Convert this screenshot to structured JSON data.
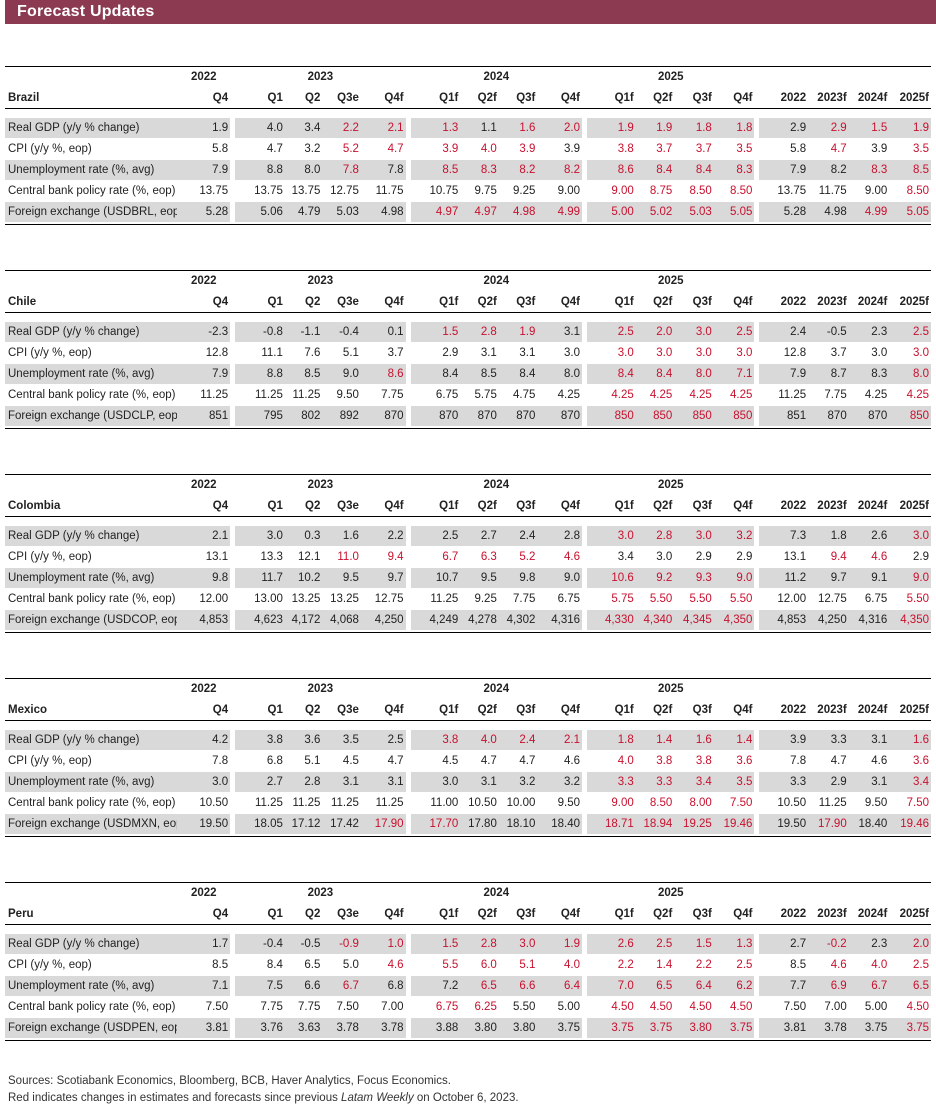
{
  "title": "Forecast Updates",
  "year_headers": [
    "2022",
    "2023",
    "2024",
    "2025"
  ],
  "quarter_headers": [
    "Q4",
    "Q1",
    "Q2",
    "Q3e",
    "Q4f",
    "Q1f",
    "Q2f",
    "Q3f",
    "Q4f",
    "Q1f",
    "Q2f",
    "Q3f",
    "Q4f"
  ],
  "annual_headers": [
    "2022",
    "2023f",
    "2024f",
    "2025f"
  ],
  "countries": [
    {
      "name": "Brazil",
      "rows": [
        {
          "label": "Real GDP (y/y % change)",
          "q": [
            "1.9",
            "4.0",
            "3.4",
            "2.2",
            "2.1",
            "1.3",
            "1.1",
            "1.6",
            "2.0",
            "1.9",
            "1.9",
            "1.8",
            "1.8"
          ],
          "a": [
            "2.9",
            "2.9",
            "1.5",
            "1.9"
          ],
          "red_q": [
            3,
            4,
            5,
            7,
            8,
            9,
            10,
            11,
            12
          ],
          "red_a": [
            1,
            2,
            3
          ]
        },
        {
          "label": "CPI (y/y %, eop)",
          "q": [
            "5.8",
            "4.7",
            "3.2",
            "5.2",
            "4.7",
            "3.9",
            "4.0",
            "3.9",
            "3.9",
            "3.8",
            "3.7",
            "3.7",
            "3.5"
          ],
          "a": [
            "5.8",
            "4.7",
            "3.9",
            "3.5"
          ],
          "red_q": [
            3,
            4,
            5,
            6,
            7,
            9,
            10,
            11,
            12
          ],
          "red_a": [
            1,
            3
          ]
        },
        {
          "label": "Unemployment rate (%, avg)",
          "q": [
            "7.9",
            "8.8",
            "8.0",
            "7.8",
            "7.8",
            "8.5",
            "8.3",
            "8.2",
            "8.2",
            "8.6",
            "8.4",
            "8.4",
            "8.3"
          ],
          "a": [
            "7.9",
            "8.2",
            "8.3",
            "8.5"
          ],
          "red_q": [
            3,
            5,
            6,
            7,
            8,
            9,
            10,
            11,
            12
          ],
          "red_a": [
            2,
            3
          ]
        },
        {
          "label": "Central bank policy rate (%, eop)",
          "q": [
            "13.75",
            "13.75",
            "13.75",
            "12.75",
            "11.75",
            "10.75",
            "9.75",
            "9.25",
            "9.00",
            "9.00",
            "8.75",
            "8.50",
            "8.50"
          ],
          "a": [
            "13.75",
            "11.75",
            "9.00",
            "8.50"
          ],
          "red_q": [
            9,
            10,
            11,
            12
          ],
          "red_a": [
            3
          ]
        },
        {
          "label": "Foreign exchange (USDBRL, eop)",
          "q": [
            "5.28",
            "5.06",
            "4.79",
            "5.03",
            "4.98",
            "4.97",
            "4.97",
            "4.98",
            "4.99",
            "5.00",
            "5.02",
            "5.03",
            "5.05"
          ],
          "a": [
            "5.28",
            "4.98",
            "4.99",
            "5.05"
          ],
          "red_q": [
            5,
            6,
            7,
            8,
            9,
            10,
            11,
            12
          ],
          "red_a": [
            2,
            3
          ]
        }
      ]
    },
    {
      "name": "Chile",
      "rows": [
        {
          "label": "Real GDP (y/y % change)",
          "q": [
            "-2.3",
            "-0.8",
            "-1.1",
            "-0.4",
            "0.1",
            "1.5",
            "2.8",
            "1.9",
            "3.1",
            "2.5",
            "2.0",
            "3.0",
            "2.5"
          ],
          "a": [
            "2.4",
            "-0.5",
            "2.3",
            "2.5"
          ],
          "red_q": [
            5,
            6,
            7,
            9,
            10,
            11,
            12
          ],
          "red_a": [
            3
          ]
        },
        {
          "label": "CPI (y/y %, eop)",
          "q": [
            "12.8",
            "11.1",
            "7.6",
            "5.1",
            "3.7",
            "2.9",
            "3.1",
            "3.1",
            "3.0",
            "3.0",
            "3.0",
            "3.0",
            "3.0"
          ],
          "a": [
            "12.8",
            "3.7",
            "3.0",
            "3.0"
          ],
          "red_q": [
            9,
            10,
            11,
            12
          ],
          "red_a": [
            3
          ]
        },
        {
          "label": "Unemployment rate (%, avg)",
          "q": [
            "7.9",
            "8.8",
            "8.5",
            "9.0",
            "8.6",
            "8.4",
            "8.5",
            "8.4",
            "8.0",
            "8.4",
            "8.4",
            "8.0",
            "7.1"
          ],
          "a": [
            "7.9",
            "8.7",
            "8.3",
            "8.0"
          ],
          "red_q": [
            4,
            9,
            10,
            11,
            12
          ],
          "red_a": [
            3
          ]
        },
        {
          "label": "Central bank policy rate (%, eop)",
          "q": [
            "11.25",
            "11.25",
            "11.25",
            "9.50",
            "7.75",
            "6.75",
            "5.75",
            "4.75",
            "4.25",
            "4.25",
            "4.25",
            "4.25",
            "4.25"
          ],
          "a": [
            "11.25",
            "7.75",
            "4.25",
            "4.25"
          ],
          "red_q": [
            9,
            10,
            11,
            12
          ],
          "red_a": [
            3
          ]
        },
        {
          "label": "Foreign exchange (USDCLP, eop)",
          "q": [
            "851",
            "795",
            "802",
            "892",
            "870",
            "870",
            "870",
            "870",
            "870",
            "850",
            "850",
            "850",
            "850"
          ],
          "a": [
            "851",
            "870",
            "870",
            "850"
          ],
          "red_q": [
            9,
            10,
            11,
            12
          ],
          "red_a": [
            3
          ]
        }
      ]
    },
    {
      "name": "Colombia",
      "rows": [
        {
          "label": "Real GDP (y/y % change)",
          "q": [
            "2.1",
            "3.0",
            "0.3",
            "1.6",
            "2.2",
            "2.5",
            "2.7",
            "2.4",
            "2.8",
            "3.0",
            "2.8",
            "3.0",
            "3.2"
          ],
          "a": [
            "7.3",
            "1.8",
            "2.6",
            "3.0"
          ],
          "red_q": [
            9,
            10,
            11,
            12
          ],
          "red_a": [
            3
          ]
        },
        {
          "label": "CPI (y/y %, eop)",
          "q": [
            "13.1",
            "13.3",
            "12.1",
            "11.0",
            "9.4",
            "6.7",
            "6.3",
            "5.2",
            "4.6",
            "3.4",
            "3.0",
            "2.9",
            "2.9"
          ],
          "a": [
            "13.1",
            "9.4",
            "4.6",
            "2.9"
          ],
          "red_q": [
            3,
            4,
            5,
            6,
            7,
            8
          ],
          "red_a": [
            1,
            2
          ]
        },
        {
          "label": "Unemployment rate (%, avg)",
          "q": [
            "9.8",
            "11.7",
            "10.2",
            "9.5",
            "9.7",
            "10.7",
            "9.5",
            "9.8",
            "9.0",
            "10.6",
            "9.2",
            "9.3",
            "9.0"
          ],
          "a": [
            "11.2",
            "9.7",
            "9.1",
            "9.0"
          ],
          "red_q": [
            9,
            10,
            11,
            12
          ],
          "red_a": [
            3
          ]
        },
        {
          "label": "Central bank policy rate (%, eop)",
          "q": [
            "12.00",
            "13.00",
            "13.25",
            "13.25",
            "12.75",
            "11.25",
            "9.25",
            "7.75",
            "6.75",
            "5.75",
            "5.50",
            "5.50",
            "5.50"
          ],
          "a": [
            "12.00",
            "12.75",
            "6.75",
            "5.50"
          ],
          "red_q": [
            9,
            10,
            11,
            12
          ],
          "red_a": [
            3
          ]
        },
        {
          "label": "Foreign exchange (USDCOP, eop)",
          "q": [
            "4,853",
            "4,623",
            "4,172",
            "4,068",
            "4,250",
            "4,249",
            "4,278",
            "4,302",
            "4,316",
            "4,330",
            "4,340",
            "4,345",
            "4,350"
          ],
          "a": [
            "4,853",
            "4,250",
            "4,316",
            "4,350"
          ],
          "red_q": [
            9,
            10,
            11,
            12
          ],
          "red_a": [
            3
          ]
        }
      ]
    },
    {
      "name": "Mexico",
      "rows": [
        {
          "label": "Real GDP (y/y % change)",
          "q": [
            "4.2",
            "3.8",
            "3.6",
            "3.5",
            "2.5",
            "3.8",
            "4.0",
            "2.4",
            "2.1",
            "1.8",
            "1.4",
            "1.6",
            "1.4"
          ],
          "a": [
            "3.9",
            "3.3",
            "3.1",
            "1.6"
          ],
          "red_q": [
            5,
            6,
            7,
            8,
            9,
            10,
            11,
            12
          ],
          "red_a": [
            3
          ]
        },
        {
          "label": "CPI (y/y %, eop)",
          "q": [
            "7.8",
            "6.8",
            "5.1",
            "4.5",
            "4.7",
            "4.5",
            "4.7",
            "4.7",
            "4.6",
            "4.0",
            "3.8",
            "3.8",
            "3.6"
          ],
          "a": [
            "7.8",
            "4.7",
            "4.6",
            "3.6"
          ],
          "red_q": [
            9,
            10,
            11,
            12
          ],
          "red_a": [
            3
          ]
        },
        {
          "label": "Unemployment rate (%, avg)",
          "q": [
            "3.0",
            "2.7",
            "2.8",
            "3.1",
            "3.1",
            "3.0",
            "3.1",
            "3.2",
            "3.2",
            "3.3",
            "3.3",
            "3.4",
            "3.5"
          ],
          "a": [
            "3.3",
            "2.9",
            "3.1",
            "3.4"
          ],
          "red_q": [
            9,
            10,
            11,
            12
          ],
          "red_a": [
            3
          ]
        },
        {
          "label": "Central bank policy rate (%, eop)",
          "q": [
            "10.50",
            "11.25",
            "11.25",
            "11.25",
            "11.25",
            "11.00",
            "10.50",
            "10.00",
            "9.50",
            "9.00",
            "8.50",
            "8.00",
            "7.50"
          ],
          "a": [
            "10.50",
            "11.25",
            "9.50",
            "7.50"
          ],
          "red_q": [
            9,
            10,
            11,
            12
          ],
          "red_a": [
            3
          ]
        },
        {
          "label": "Foreign exchange (USDMXN, eop)",
          "q": [
            "19.50",
            "18.05",
            "17.12",
            "17.42",
            "17.90",
            "17.70",
            "17.80",
            "18.10",
            "18.40",
            "18.71",
            "18.94",
            "19.25",
            "19.46"
          ],
          "a": [
            "19.50",
            "17.90",
            "18.40",
            "19.46"
          ],
          "red_q": [
            4,
            5,
            9,
            10,
            11,
            12
          ],
          "red_a": [
            1,
            3
          ]
        }
      ]
    },
    {
      "name": "Peru",
      "rows": [
        {
          "label": "Real GDP (y/y % change)",
          "q": [
            "1.7",
            "-0.4",
            "-0.5",
            "-0.9",
            "1.0",
            "1.5",
            "2.8",
            "3.0",
            "1.9",
            "2.6",
            "2.5",
            "1.5",
            "1.3"
          ],
          "a": [
            "2.7",
            "-0.2",
            "2.3",
            "2.0"
          ],
          "red_q": [
            3,
            4,
            5,
            6,
            7,
            8,
            9,
            10,
            11,
            12
          ],
          "red_a": [
            1,
            3
          ]
        },
        {
          "label": "CPI (y/y %, eop)",
          "q": [
            "8.5",
            "8.4",
            "6.5",
            "5.0",
            "4.6",
            "5.5",
            "6.0",
            "5.1",
            "4.0",
            "2.2",
            "1.4",
            "2.2",
            "2.5"
          ],
          "a": [
            "8.5",
            "4.6",
            "4.0",
            "2.5"
          ],
          "red_q": [
            4,
            5,
            6,
            7,
            8,
            9,
            10,
            11,
            12
          ],
          "red_a": [
            1,
            2,
            3
          ]
        },
        {
          "label": "Unemployment rate (%, avg)",
          "q": [
            "7.1",
            "7.5",
            "6.6",
            "6.7",
            "6.8",
            "7.2",
            "6.5",
            "6.6",
            "6.4",
            "7.0",
            "6.5",
            "6.4",
            "6.2"
          ],
          "a": [
            "7.7",
            "6.9",
            "6.7",
            "6.5"
          ],
          "red_q": [
            3,
            6,
            7,
            8,
            9,
            10,
            11,
            12
          ],
          "red_a": [
            1,
            2,
            3
          ]
        },
        {
          "label": "Central bank policy rate (%, eop)",
          "q": [
            "7.50",
            "7.75",
            "7.75",
            "7.50",
            "7.00",
            "6.75",
            "6.25",
            "5.50",
            "5.00",
            "4.50",
            "4.50",
            "4.50",
            "4.50"
          ],
          "a": [
            "7.50",
            "7.00",
            "5.00",
            "4.50"
          ],
          "red_q": [
            5,
            6,
            9,
            10,
            11,
            12
          ],
          "red_a": [
            3
          ]
        },
        {
          "label": "Foreign exchange (USDPEN, eop)",
          "q": [
            "3.81",
            "3.76",
            "3.63",
            "3.78",
            "3.78",
            "3.88",
            "3.80",
            "3.80",
            "3.75",
            "3.75",
            "3.75",
            "3.80",
            "3.75"
          ],
          "a": [
            "3.81",
            "3.78",
            "3.75",
            "3.75"
          ],
          "red_q": [
            9,
            10,
            11,
            12
          ],
          "red_a": [
            3
          ]
        }
      ]
    }
  ],
  "footnote": {
    "sources": "Sources: Scotiabank Economics, Bloomberg, BCB, Haver Analytics, Focus Economics.",
    "note_before": "Red indicates changes in estimates and forecasts since previous ",
    "note_italic": "Latam Weekly",
    "note_after": " on October 6, 2023."
  },
  "colors": {
    "header_bg": "#8b3a52",
    "changed": "#c8102e",
    "shade": "#d9d9d9"
  }
}
